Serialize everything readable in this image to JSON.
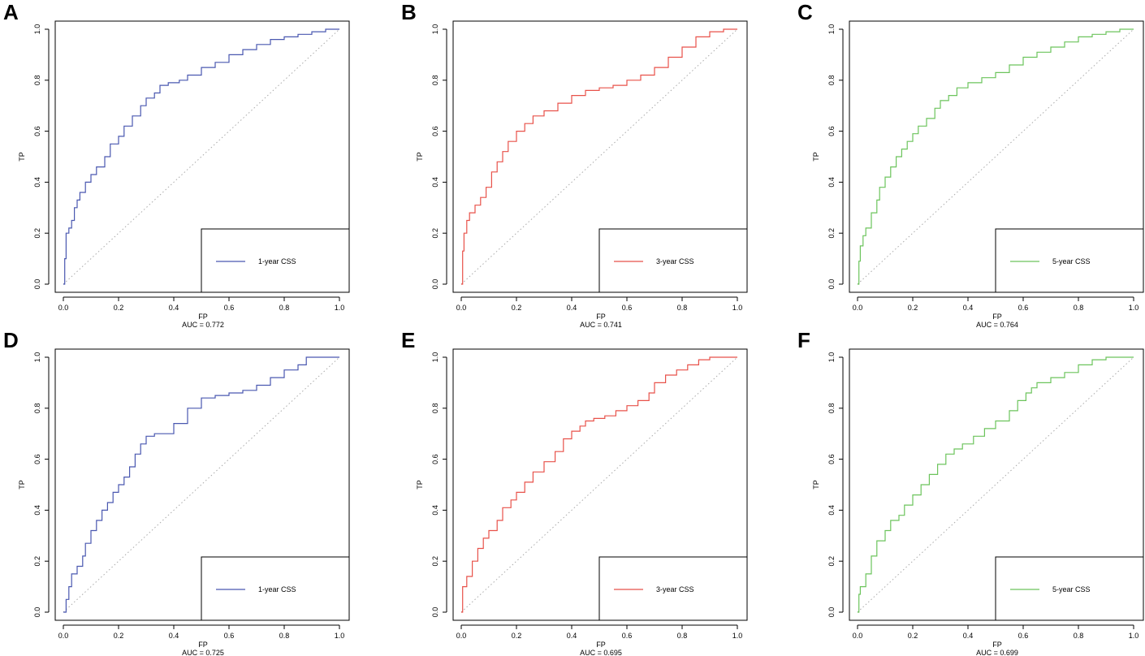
{
  "chart_data": [
    {
      "panel_label": "A",
      "type": "line",
      "xlabel": "FP",
      "ylabel": "TP",
      "xlim": [
        0,
        1
      ],
      "ylim": [
        0,
        1
      ],
      "x_ticks": [
        "0.0",
        "0.2",
        "0.4",
        "0.6",
        "0.8",
        "1.0"
      ],
      "y_ticks": [
        "0.0",
        "0.2",
        "0.4",
        "0.6",
        "0.8",
        "1.0"
      ],
      "auc_text": "AUC = 0.772",
      "legend_label": "1-year CSS",
      "legend_position": "bottom-right",
      "color": "#4a58b0",
      "series": [
        {
          "name": "1-year CSS",
          "x": [
            0,
            0.005,
            0.01,
            0.02,
            0.03,
            0.04,
            0.05,
            0.06,
            0.08,
            0.1,
            0.12,
            0.15,
            0.17,
            0.2,
            0.22,
            0.25,
            0.28,
            0.3,
            0.33,
            0.35,
            0.38,
            0.42,
            0.45,
            0.5,
            0.55,
            0.6,
            0.65,
            0.7,
            0.75,
            0.8,
            0.85,
            0.9,
            0.95,
            1.0
          ],
          "y": [
            0,
            0.1,
            0.2,
            0.22,
            0.25,
            0.3,
            0.33,
            0.36,
            0.4,
            0.43,
            0.46,
            0.5,
            0.55,
            0.58,
            0.62,
            0.66,
            0.7,
            0.73,
            0.75,
            0.78,
            0.79,
            0.8,
            0.82,
            0.85,
            0.87,
            0.9,
            0.92,
            0.94,
            0.96,
            0.97,
            0.98,
            0.99,
            1.0,
            1.0
          ]
        }
      ]
    },
    {
      "panel_label": "B",
      "type": "line",
      "xlabel": "FP",
      "ylabel": "TP",
      "xlim": [
        0,
        1
      ],
      "ylim": [
        0,
        1
      ],
      "x_ticks": [
        "0.0",
        "0.2",
        "0.4",
        "0.6",
        "0.8",
        "1.0"
      ],
      "y_ticks": [
        "0.0",
        "0.2",
        "0.4",
        "0.6",
        "0.8",
        "1.0"
      ],
      "auc_text": "AUC = 0.741",
      "legend_label": "3-year CSS",
      "legend_position": "bottom-right",
      "color": "#e8524a",
      "series": [
        {
          "name": "3-year CSS",
          "x": [
            0,
            0.005,
            0.01,
            0.02,
            0.03,
            0.05,
            0.07,
            0.09,
            0.11,
            0.13,
            0.15,
            0.17,
            0.2,
            0.23,
            0.26,
            0.3,
            0.35,
            0.4,
            0.45,
            0.5,
            0.55,
            0.6,
            0.65,
            0.7,
            0.75,
            0.8,
            0.85,
            0.9,
            0.95,
            1.0
          ],
          "y": [
            0,
            0.13,
            0.2,
            0.25,
            0.28,
            0.31,
            0.34,
            0.38,
            0.44,
            0.48,
            0.52,
            0.56,
            0.6,
            0.63,
            0.66,
            0.68,
            0.71,
            0.74,
            0.76,
            0.77,
            0.78,
            0.8,
            0.82,
            0.85,
            0.89,
            0.93,
            0.97,
            0.99,
            1.0,
            1.0
          ]
        }
      ]
    },
    {
      "panel_label": "C",
      "type": "line",
      "xlabel": "FP",
      "ylabel": "TP",
      "xlim": [
        0,
        1
      ],
      "ylim": [
        0,
        1
      ],
      "x_ticks": [
        "0.0",
        "0.2",
        "0.4",
        "0.6",
        "0.8",
        "1.0"
      ],
      "y_ticks": [
        "0.0",
        "0.2",
        "0.4",
        "0.6",
        "0.8",
        "1.0"
      ],
      "auc_text": "AUC = 0.764",
      "legend_label": "5-year CSS",
      "legend_position": "bottom-right",
      "color": "#6cc45c",
      "series": [
        {
          "name": "5-year CSS",
          "x": [
            0,
            0.005,
            0.01,
            0.02,
            0.03,
            0.05,
            0.07,
            0.08,
            0.1,
            0.12,
            0.14,
            0.16,
            0.18,
            0.2,
            0.22,
            0.25,
            0.28,
            0.3,
            0.33,
            0.36,
            0.4,
            0.45,
            0.5,
            0.55,
            0.6,
            0.65,
            0.7,
            0.75,
            0.8,
            0.85,
            0.9,
            0.95,
            1.0
          ],
          "y": [
            0,
            0.09,
            0.15,
            0.19,
            0.22,
            0.28,
            0.33,
            0.38,
            0.42,
            0.46,
            0.5,
            0.53,
            0.56,
            0.59,
            0.62,
            0.65,
            0.69,
            0.72,
            0.74,
            0.77,
            0.79,
            0.81,
            0.83,
            0.86,
            0.89,
            0.91,
            0.93,
            0.95,
            0.97,
            0.98,
            0.99,
            1.0,
            1.0
          ]
        }
      ]
    },
    {
      "panel_label": "D",
      "type": "line",
      "xlabel": "FP",
      "ylabel": "TP",
      "xlim": [
        0,
        1
      ],
      "ylim": [
        0,
        1
      ],
      "x_ticks": [
        "0.0",
        "0.2",
        "0.4",
        "0.6",
        "0.8",
        "1.0"
      ],
      "y_ticks": [
        "0.0",
        "0.2",
        "0.4",
        "0.6",
        "0.8",
        "1.0"
      ],
      "auc_text": "AUC = 0.725",
      "legend_label": "1-year CSS",
      "legend_position": "bottom-right",
      "color": "#4a58b0",
      "series": [
        {
          "name": "1-year CSS",
          "x": [
            0,
            0.01,
            0.02,
            0.03,
            0.05,
            0.07,
            0.08,
            0.1,
            0.12,
            0.14,
            0.16,
            0.18,
            0.2,
            0.22,
            0.24,
            0.26,
            0.28,
            0.3,
            0.33,
            0.37,
            0.4,
            0.45,
            0.5,
            0.55,
            0.6,
            0.65,
            0.7,
            0.75,
            0.8,
            0.85,
            0.88,
            0.92,
            1.0
          ],
          "y": [
            0,
            0.05,
            0.1,
            0.15,
            0.18,
            0.22,
            0.27,
            0.32,
            0.36,
            0.4,
            0.43,
            0.47,
            0.5,
            0.53,
            0.57,
            0.62,
            0.66,
            0.69,
            0.7,
            0.7,
            0.74,
            0.8,
            0.84,
            0.85,
            0.86,
            0.87,
            0.89,
            0.92,
            0.95,
            0.97,
            1.0,
            1.0,
            1.0
          ]
        }
      ]
    },
    {
      "panel_label": "E",
      "type": "line",
      "xlabel": "FP",
      "ylabel": "TP",
      "xlim": [
        0,
        1
      ],
      "ylim": [
        0,
        1
      ],
      "x_ticks": [
        "0.0",
        "0.2",
        "0.4",
        "0.6",
        "0.8",
        "1.0"
      ],
      "y_ticks": [
        "0.0",
        "0.2",
        "0.4",
        "0.6",
        "0.8",
        "1.0"
      ],
      "auc_text": "AUC = 0.695",
      "legend_label": "3-year CSS",
      "legend_position": "bottom-right",
      "color": "#e8524a",
      "series": [
        {
          "name": "3-year CSS",
          "x": [
            0,
            0.005,
            0.02,
            0.04,
            0.06,
            0.08,
            0.1,
            0.13,
            0.15,
            0.18,
            0.2,
            0.23,
            0.26,
            0.3,
            0.34,
            0.37,
            0.4,
            0.43,
            0.45,
            0.48,
            0.52,
            0.56,
            0.6,
            0.64,
            0.68,
            0.7,
            0.74,
            0.78,
            0.82,
            0.86,
            0.9,
            1.0
          ],
          "y": [
            0,
            0.1,
            0.14,
            0.2,
            0.25,
            0.29,
            0.32,
            0.36,
            0.41,
            0.44,
            0.47,
            0.51,
            0.55,
            0.59,
            0.63,
            0.68,
            0.71,
            0.73,
            0.75,
            0.76,
            0.77,
            0.79,
            0.81,
            0.83,
            0.86,
            0.9,
            0.93,
            0.95,
            0.97,
            0.99,
            1.0,
            1.0
          ]
        }
      ]
    },
    {
      "panel_label": "F",
      "type": "line",
      "xlabel": "FP",
      "ylabel": "TP",
      "xlim": [
        0,
        1
      ],
      "ylim": [
        0,
        1
      ],
      "x_ticks": [
        "0.0",
        "0.2",
        "0.4",
        "0.6",
        "0.8",
        "1.0"
      ],
      "y_ticks": [
        "0.0",
        "0.2",
        "0.4",
        "0.6",
        "0.8",
        "1.0"
      ],
      "auc_text": "AUC = 0.699",
      "legend_label": "5-year CSS",
      "legend_position": "bottom-right",
      "color": "#6cc45c",
      "series": [
        {
          "name": "5-year CSS",
          "x": [
            0,
            0.005,
            0.01,
            0.03,
            0.05,
            0.07,
            0.1,
            0.12,
            0.15,
            0.17,
            0.2,
            0.23,
            0.26,
            0.29,
            0.32,
            0.35,
            0.38,
            0.42,
            0.46,
            0.5,
            0.55,
            0.58,
            0.61,
            0.63,
            0.65,
            0.7,
            0.75,
            0.8,
            0.85,
            0.9,
            0.95,
            1.0
          ],
          "y": [
            0,
            0.07,
            0.1,
            0.15,
            0.22,
            0.28,
            0.32,
            0.36,
            0.38,
            0.42,
            0.46,
            0.5,
            0.54,
            0.58,
            0.62,
            0.64,
            0.66,
            0.69,
            0.72,
            0.75,
            0.79,
            0.83,
            0.86,
            0.88,
            0.9,
            0.92,
            0.94,
            0.97,
            0.99,
            1.0,
            1.0,
            1.0
          ]
        }
      ]
    }
  ]
}
